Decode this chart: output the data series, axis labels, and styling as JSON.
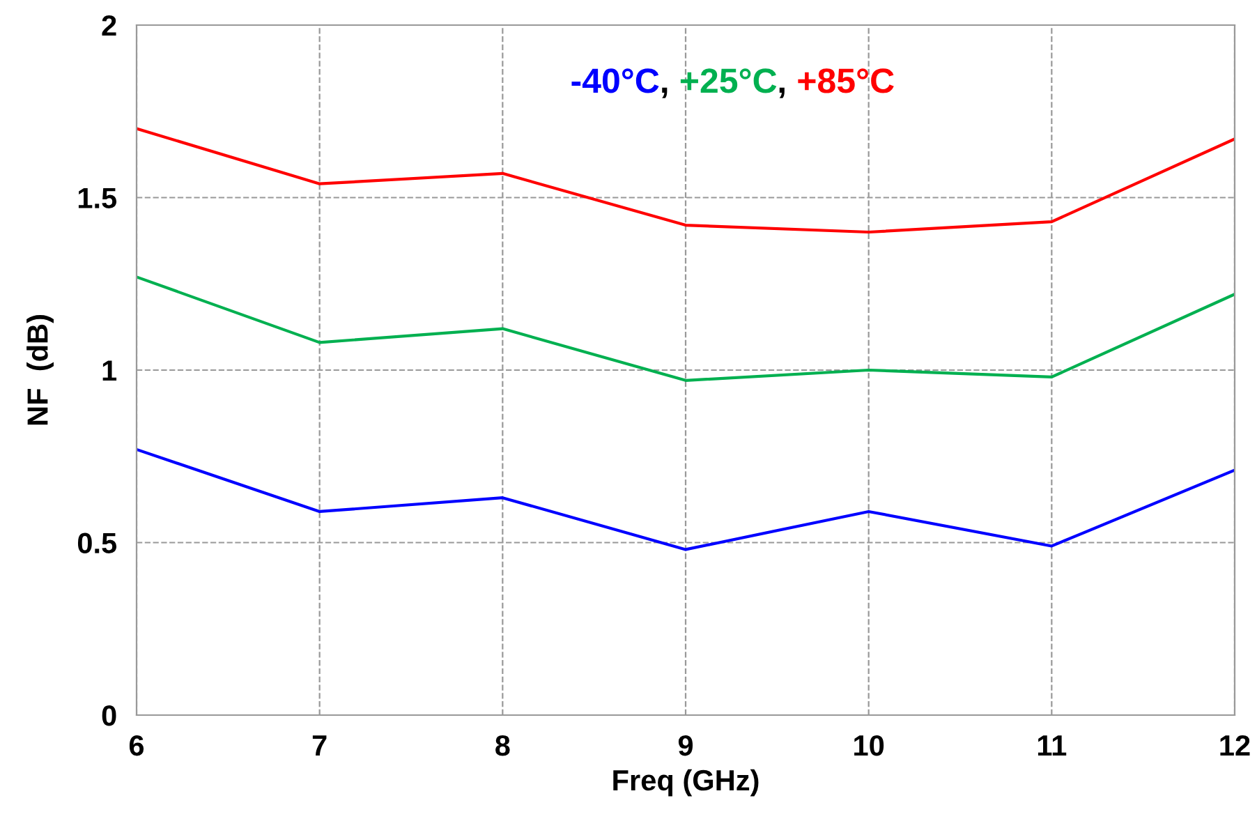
{
  "chart_data": {
    "type": "line",
    "xlabel": "Freq (GHz)",
    "ylabel": "NF  (dB)",
    "x": [
      6,
      7,
      8,
      9,
      10,
      11,
      12
    ],
    "series": [
      {
        "name": "-40°C",
        "color": "#0000ff",
        "values": [
          0.77,
          0.59,
          0.63,
          0.48,
          0.59,
          0.49,
          0.71
        ]
      },
      {
        "name": "+25°C",
        "color": "#00b050",
        "values": [
          1.27,
          1.08,
          1.12,
          0.97,
          1.0,
          0.98,
          1.22
        ]
      },
      {
        "name": "+85°C",
        "color": "#ff0000",
        "values": [
          1.7,
          1.54,
          1.57,
          1.42,
          1.4,
          1.43,
          1.67
        ]
      }
    ],
    "annotations": [
      ", ",
      ", "
    ],
    "xlim": [
      6,
      12
    ],
    "xticks": [
      6,
      7,
      8,
      9,
      10,
      11,
      12
    ],
    "ylim": [
      0,
      2
    ],
    "yticks": [
      0,
      0.5,
      1,
      1.5,
      2
    ],
    "grid": true,
    "legend": "top",
    "marker": "none",
    "line_style": "solid"
  }
}
